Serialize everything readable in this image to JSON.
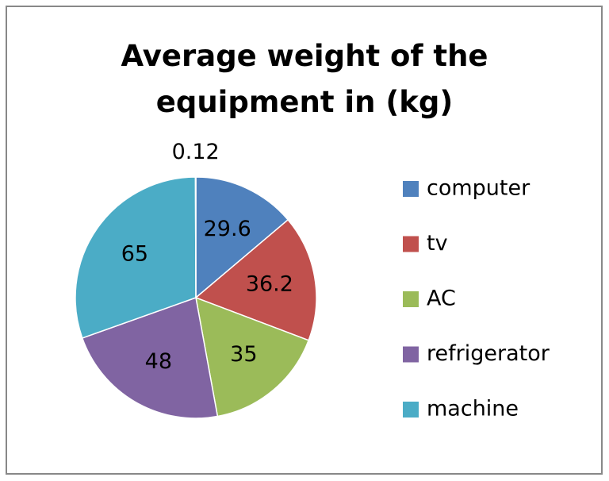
{
  "chart_data": {
    "type": "pie",
    "title": "Average weight of the equipment in (kg)",
    "categories": [
      "computer",
      "tv",
      "AC",
      "refrigerator",
      "machine",
      null
    ],
    "values": [
      29.6,
      36.2,
      35,
      48,
      65,
      0.12
    ],
    "colors": [
      "#4f81bd",
      "#c0504d",
      "#9bbb59",
      "#8064a2",
      "#4bacc6",
      "#f79646"
    ],
    "legend": "right"
  }
}
